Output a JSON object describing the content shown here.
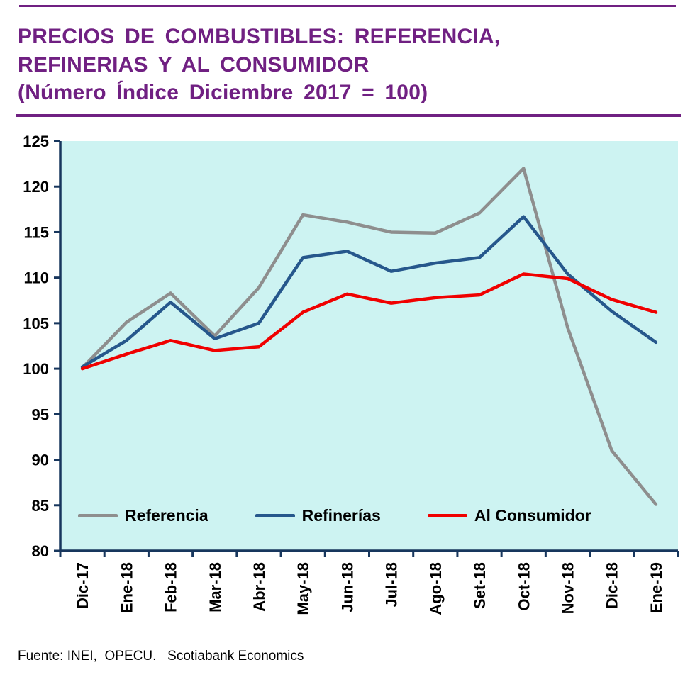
{
  "header": {
    "title_line1": "PRECIOS DE COMBUSTIBLES: REFERENCIA,",
    "title_line2": "REFINERIAS Y AL CONSUMIDOR",
    "subtitle": "(Número Índice Diciembre 2017 = 100)"
  },
  "footer": {
    "source": "Fuente: INEI,  OPECU.   Scotiabank Economics"
  },
  "colors": {
    "title_purple": "#702082",
    "axis_navy": "#17365D",
    "plot_background": "#CDF3F2"
  },
  "chart_data": {
    "type": "line",
    "title": "PRECIOS DE COMBUSTIBLES: REFERENCIA, REFINERIAS Y AL CONSUMIDOR (Número Índice Diciembre 2017 = 100)",
    "categories": [
      "Dic-17",
      "Ene-18",
      "Feb-18",
      "Mar-18",
      "Abr-18",
      "May-18",
      "Jun-18",
      "Jul-18",
      "Ago-18",
      "Set-18",
      "Oct-18",
      "Nov-18",
      "Dic-18",
      "Ene-19"
    ],
    "series": [
      {
        "name": "Referencia",
        "color": "#8E8E8E",
        "values": [
          100.1,
          105.1,
          108.3,
          103.6,
          108.9,
          116.9,
          116.1,
          115.0,
          114.9,
          117.1,
          122.0,
          104.5,
          91.0,
          85.1
        ]
      },
      {
        "name": "Refinerías",
        "color": "#26578C",
        "values": [
          100.2,
          103.1,
          107.3,
          103.3,
          105.0,
          112.2,
          112.9,
          110.7,
          111.6,
          112.2,
          116.7,
          110.4,
          106.3,
          102.9
        ]
      },
      {
        "name": "Al Consumidor",
        "color": "#F00000",
        "values": [
          100.0,
          101.6,
          103.1,
          102.0,
          102.4,
          106.2,
          108.2,
          107.2,
          107.8,
          108.1,
          110.4,
          109.9,
          107.6,
          106.2
        ]
      }
    ],
    "xlabel": "",
    "ylabel": "",
    "ylim": [
      80,
      125
    ],
    "ytick_step": 5,
    "grid": false,
    "legend_position": "bottom-inside",
    "plot_bg": "#CDF3F2",
    "axis_color": "#17365D"
  }
}
